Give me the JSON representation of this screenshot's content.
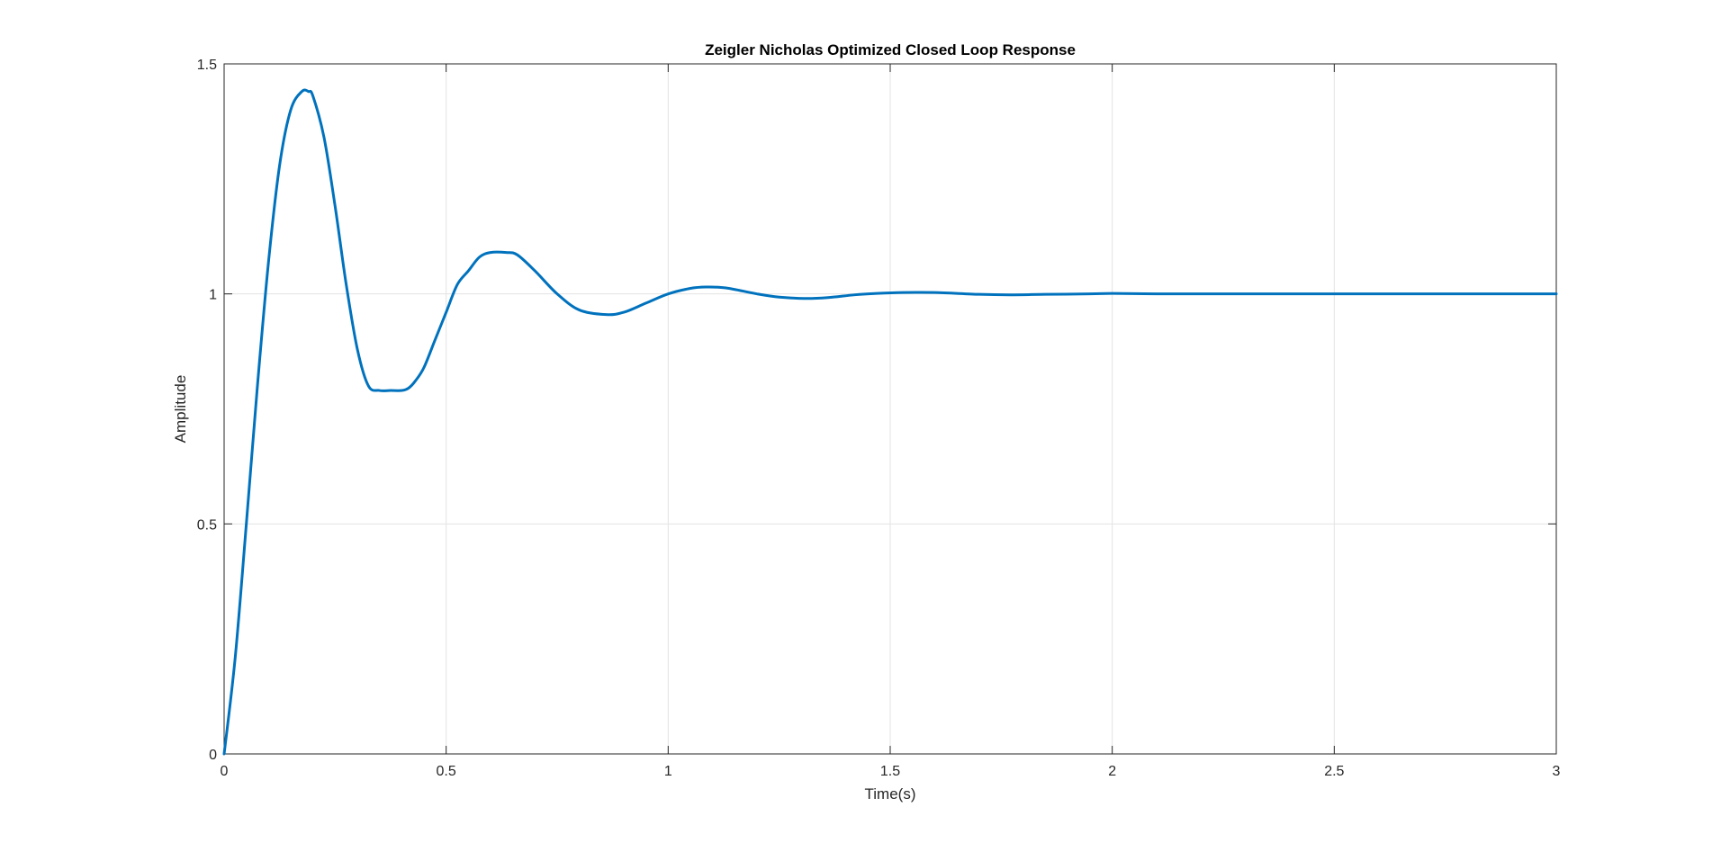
{
  "chart_data": {
    "type": "line",
    "title": "Zeigler Nicholas Optimized Closed Loop Response",
    "xlabel": "Time(s)",
    "ylabel": "Amplitude",
    "xlim": [
      0,
      3
    ],
    "ylim": [
      0,
      1.5
    ],
    "xticks": [
      0,
      0.5,
      1,
      1.5,
      2,
      2.5,
      3
    ],
    "xtick_labels": [
      "0",
      "0.5",
      "1",
      "1.5",
      "2",
      "2.5",
      "3"
    ],
    "yticks": [
      0,
      0.5,
      1,
      1.5
    ],
    "ytick_labels": [
      "0",
      "0.5",
      "1",
      "1.5"
    ],
    "grid": true,
    "colors": {
      "line": "#0072BD",
      "grid": "#e3e3e3",
      "axes": "#262626"
    },
    "series": [
      {
        "x": [
          0,
          0.025,
          0.05,
          0.075,
          0.1,
          0.125,
          0.15,
          0.175,
          0.19,
          0.2,
          0.225,
          0.25,
          0.275,
          0.3,
          0.325,
          0.35,
          0.375,
          0.4,
          0.415,
          0.43,
          0.45,
          0.475,
          0.5,
          0.525,
          0.55,
          0.575,
          0.6,
          0.635,
          0.66,
          0.7,
          0.75,
          0.8,
          0.86,
          0.9,
          0.95,
          1.0,
          1.05,
          1.085,
          1.13,
          1.2,
          1.25,
          1.31,
          1.36,
          1.42,
          1.47,
          1.53,
          1.6,
          1.7,
          1.77,
          1.85,
          1.95,
          2.0,
          2.1,
          2.25,
          2.5,
          2.75,
          3.0
        ],
        "y": [
          0,
          0.21,
          0.5,
          0.8,
          1.07,
          1.28,
          1.4,
          1.44,
          1.44,
          1.43,
          1.34,
          1.19,
          1.02,
          0.88,
          0.8,
          0.79,
          0.79,
          0.79,
          0.795,
          0.81,
          0.84,
          0.9,
          0.96,
          1.02,
          1.05,
          1.08,
          1.09,
          1.09,
          1.085,
          1.05,
          1.0,
          0.965,
          0.955,
          0.96,
          0.98,
          1.0,
          1.012,
          1.015,
          1.013,
          1.0,
          0.993,
          0.99,
          0.992,
          0.998,
          1.001,
          1.003,
          1.003,
          0.999,
          0.998,
          0.999,
          1.0,
          1.001,
          1.0,
          1.0,
          1.0,
          1.0,
          1.0
        ]
      }
    ]
  }
}
